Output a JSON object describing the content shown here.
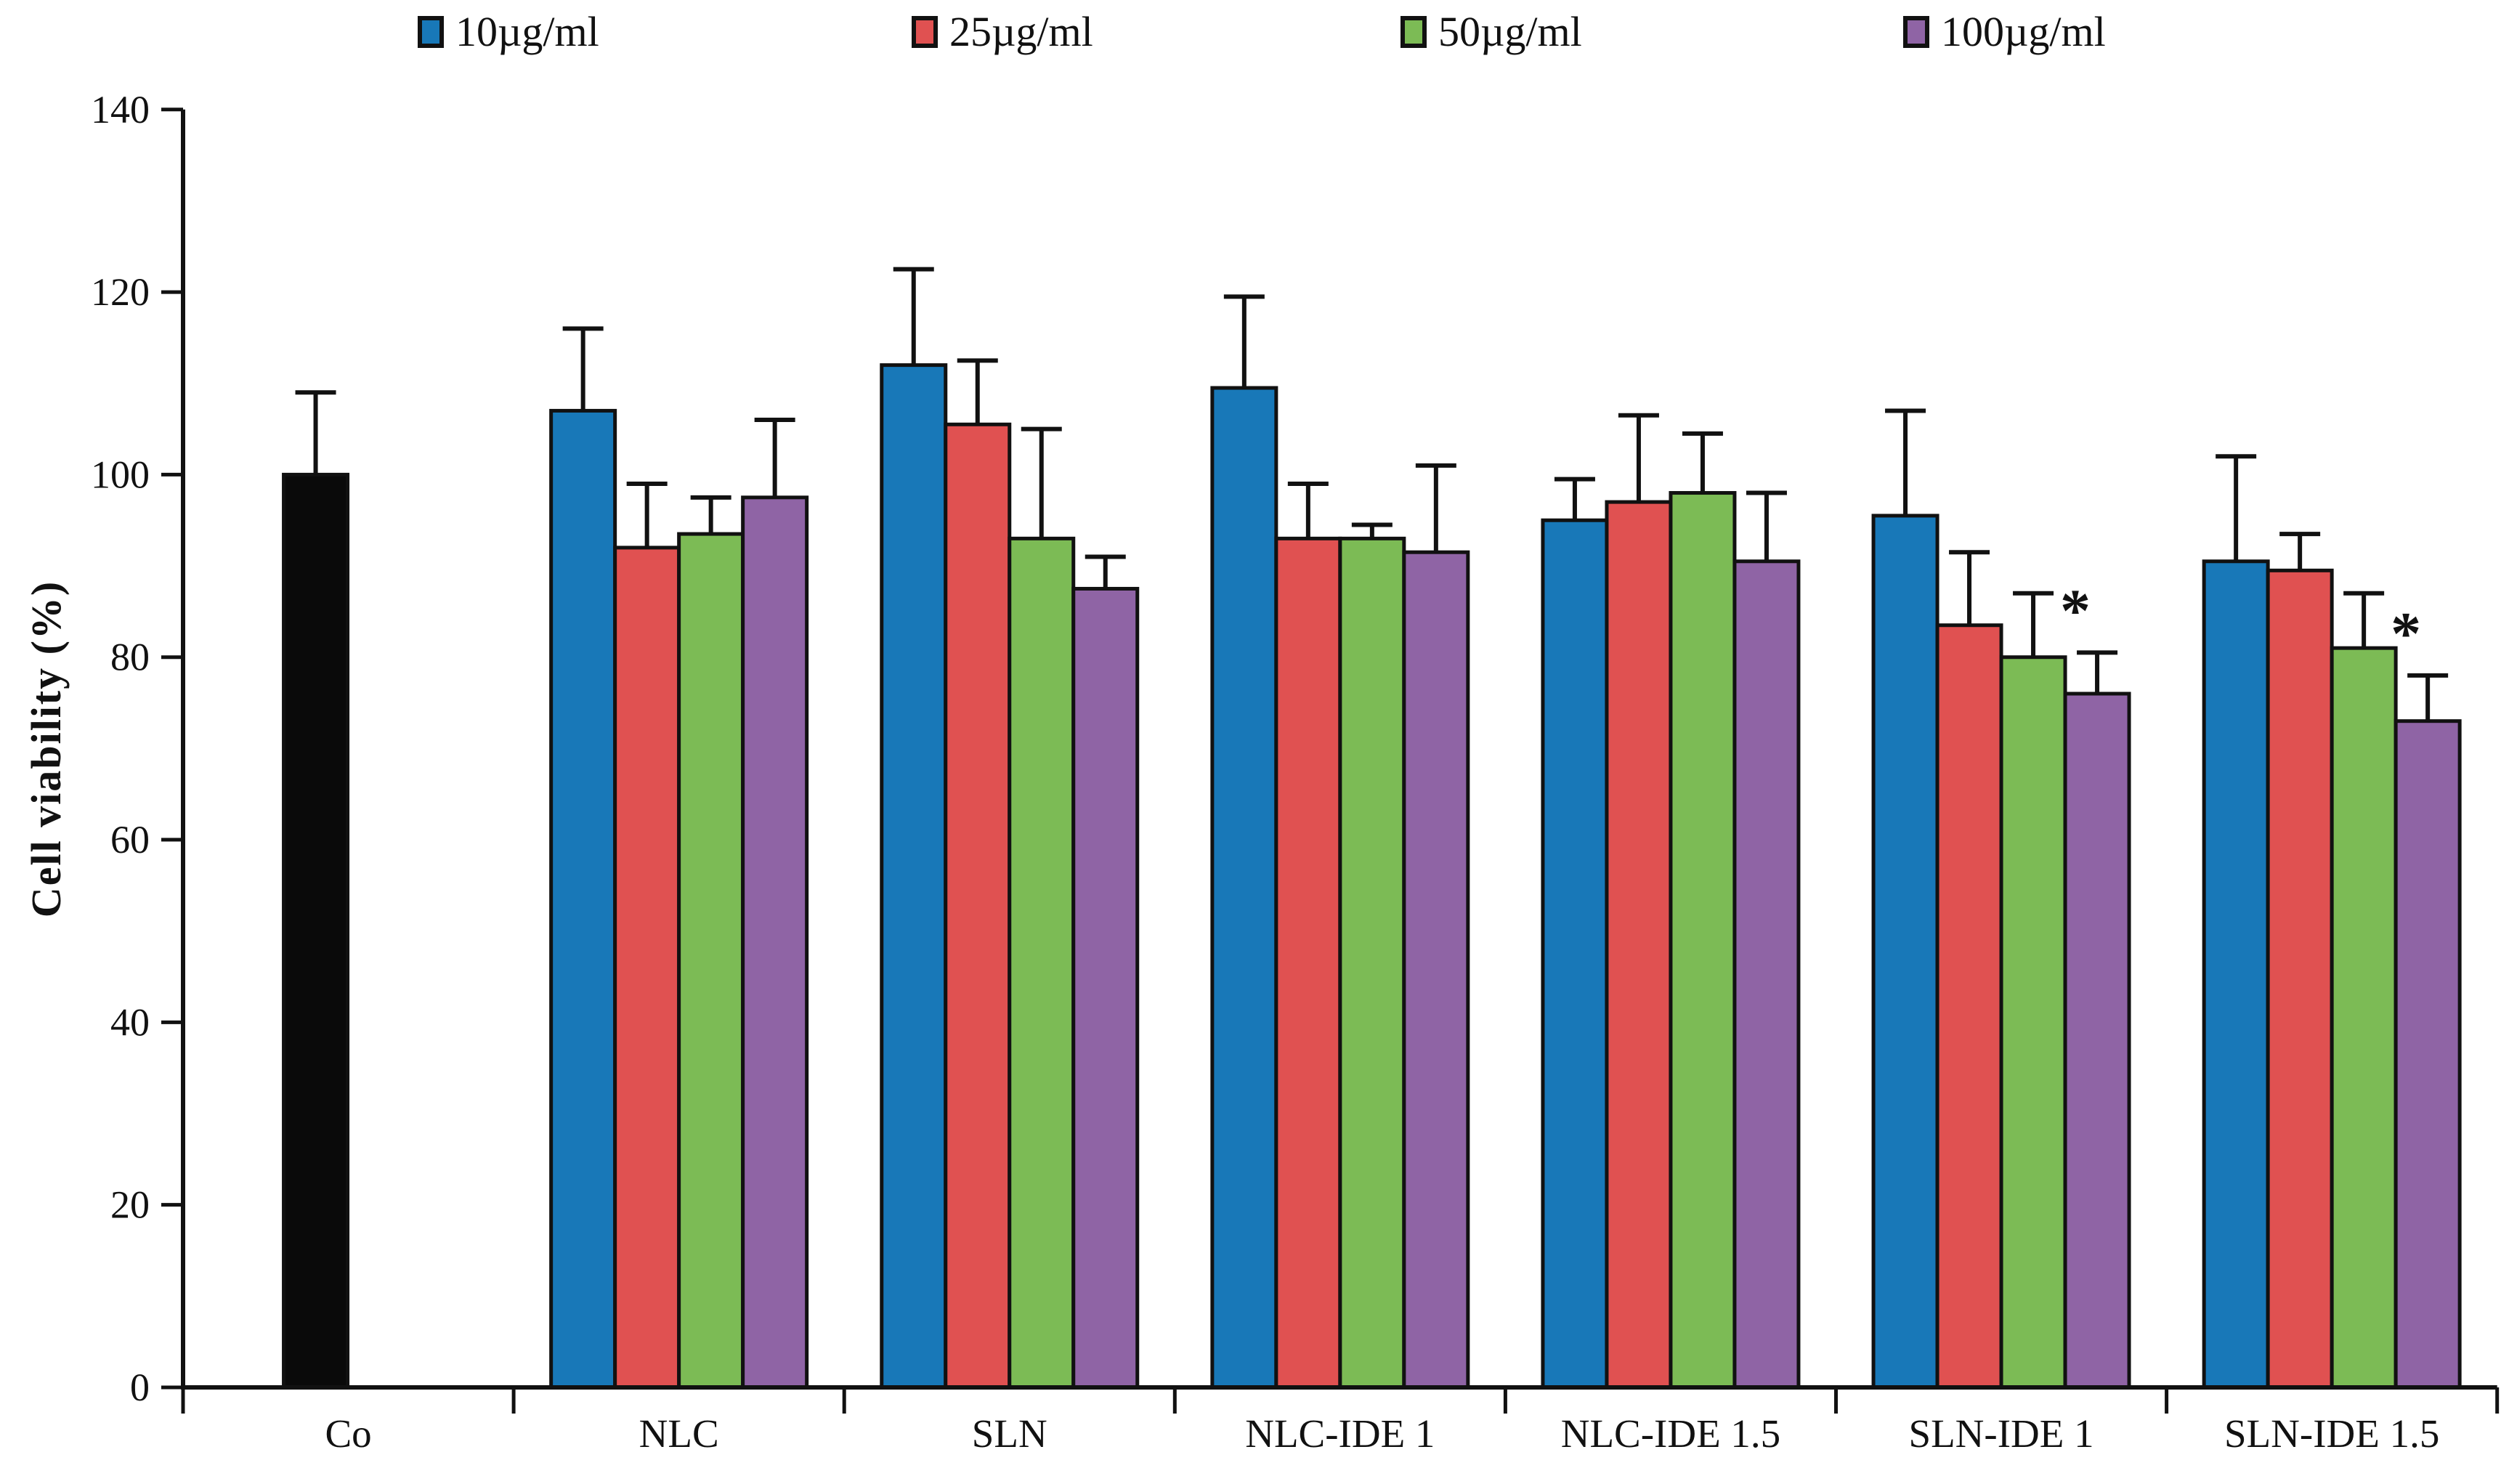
{
  "chart_data": {
    "type": "bar",
    "title": "",
    "ylabel": "Cell viability (%)",
    "xlabel": "",
    "ylim": [
      0,
      140
    ],
    "ytick_step": 20,
    "grid": "off",
    "legend_position": "top",
    "categories": [
      "Co",
      "NLC",
      "SLN",
      "NLC-IDE 1",
      "NLC-IDE 1.5",
      "SLN-IDE 1",
      "SLN-IDE 1.5"
    ],
    "series": [
      {
        "name": "Co",
        "in_legend": false,
        "color": "#0a0a0a",
        "values": [
          100,
          null,
          null,
          null,
          null,
          null,
          null
        ],
        "errors_up": [
          9,
          null,
          null,
          null,
          null,
          null,
          null
        ]
      },
      {
        "name": "10µg/ml",
        "in_legend": true,
        "color": "#1878b8",
        "values": [
          null,
          107,
          112,
          109.5,
          95,
          95.5,
          90.5
        ],
        "errors_up": [
          null,
          9,
          10.5,
          10,
          4.5,
          11.5,
          11.5
        ]
      },
      {
        "name": "25µg/ml",
        "in_legend": true,
        "color": "#e05151",
        "values": [
          null,
          92,
          105.5,
          93,
          97,
          83.5,
          89.5
        ],
        "errors_up": [
          null,
          7,
          7,
          6,
          9.5,
          8,
          4
        ]
      },
      {
        "name": "50µg/ml",
        "in_legend": true,
        "color": "#7cbb55",
        "values": [
          null,
          93.5,
          93,
          93,
          98,
          80,
          81
        ],
        "errors_up": [
          null,
          4,
          12,
          1.5,
          6.5,
          7,
          6
        ]
      },
      {
        "name": "100µg/ml",
        "in_legend": true,
        "color": "#8f64a5",
        "values": [
          null,
          97.5,
          87.5,
          91.5,
          90.5,
          76,
          73
        ],
        "errors_up": [
          null,
          8.5,
          3.5,
          9.5,
          7.5,
          4.5,
          5
        ]
      }
    ],
    "annotations": [
      {
        "text": "*",
        "category": "SLN-IDE 1",
        "series": "100µg/ml"
      },
      {
        "text": "*",
        "category": "SLN-IDE 1.5",
        "series": "100µg/ml"
      }
    ],
    "ytick_labels": [
      "0",
      "20",
      "40",
      "60",
      "80",
      "100",
      "120",
      "140"
    ]
  }
}
